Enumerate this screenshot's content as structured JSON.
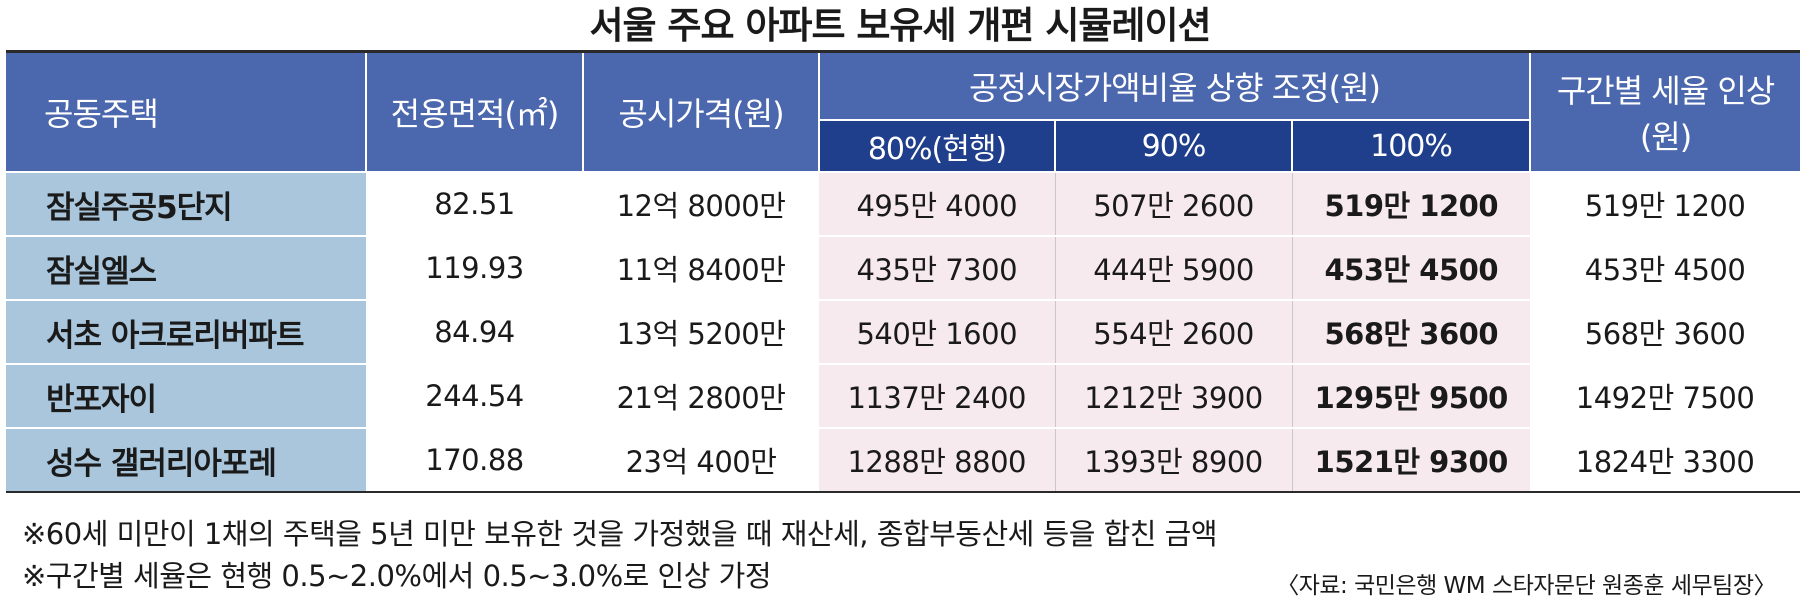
{
  "title": "서울 주요 아파트 보유세 개편 시뮬레이션",
  "table": {
    "headers": {
      "housing": "공동주택",
      "area": "전용면적(㎡)",
      "price": "공시가격(원)",
      "ratio_group": "공정시장가액비율 상향 조정(원)",
      "ratio_sub": [
        "80%(현행)",
        "90%",
        "100%"
      ],
      "bracket_line1": "구간별 세율 인상",
      "bracket_line2": "(원)"
    },
    "rows": [
      {
        "name": "잠실주공5단지",
        "area": "82.51",
        "price": "12억 8000만",
        "r80": "495만 4000",
        "r90": "507만 2600",
        "r100": "519만 1200",
        "bracket": "519만 1200"
      },
      {
        "name": "잠실엘스",
        "area": "119.93",
        "price": "11억 8400만",
        "r80": "435만 7300",
        "r90": "444만 5900",
        "r100": "453만 4500",
        "bracket": "453만 4500"
      },
      {
        "name": "서초 아크로리버파트",
        "area": "84.94",
        "price": "13억 5200만",
        "r80": "540만 1600",
        "r90": "554만 2600",
        "r100": "568만 3600",
        "bracket": "568만 3600"
      },
      {
        "name": "반포자이",
        "area": "244.54",
        "price": "21억 2800만",
        "r80": "1137만 2400",
        "r90": "1212만 3900",
        "r100": "1295만 9500",
        "bracket": "1492만 7500"
      },
      {
        "name": "성수 갤러리아포레",
        "area": "170.88",
        "price": "23억 400만",
        "r80": "1288만 8800",
        "r90": "1393만 8900",
        "r100": "1521만 9300",
        "bracket": "1824만 3300"
      }
    ]
  },
  "notes": {
    "note1": "※60세 미만이 1채의 주택을 5년 미만 보유한 것을 가정했을 때 재산세, 종합부동산세 등을 합친 금액",
    "note2": "※구간별 세율은 현행 0.5~2.0%에서 0.5~3.0%로 인상 가정",
    "source": "〈자료: 국민은행 WM 스타자문단 원종훈 세무팀장〉"
  },
  "colors": {
    "header_bg": "#4b67ad",
    "subheader_bg": "#1f3e8b",
    "name_col_bg": "#a9c6dc",
    "highlight_bg": "#f7eaee"
  }
}
